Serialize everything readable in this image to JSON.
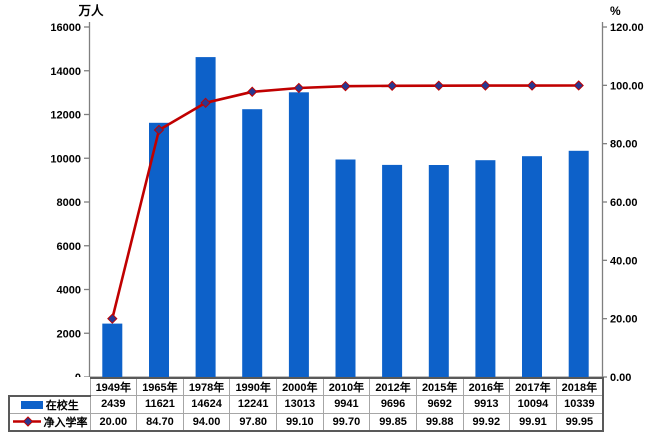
{
  "colors": {
    "bar": "#0d61c9",
    "line": "#c00000",
    "marker_fill": "#283891",
    "marker_stroke": "#c00000",
    "axis_line": "#7f7f7f",
    "table_inner_border": "#a6a6a6",
    "table_outer_border": "#595959",
    "text": "#000000",
    "background": "#ffffff"
  },
  "chart_data": {
    "type": "bar+line",
    "title": "",
    "categories": [
      "1949年",
      "1965年",
      "1978年",
      "1990年",
      "2000年",
      "2010年",
      "2012年",
      "2015年",
      "2016年",
      "2017年",
      "2018年"
    ],
    "series": [
      {
        "name": "在校生",
        "type": "bar",
        "axis": "left",
        "color": "#0d61c9",
        "values": [
          2439,
          11621,
          14624,
          12241,
          13013,
          9941,
          9696,
          9692,
          9913,
          10094,
          10339
        ],
        "display": [
          "2439",
          "11621",
          "14624",
          "12241",
          "13013",
          "9941",
          "9696",
          "9692",
          "9913",
          "10094",
          "10339"
        ]
      },
      {
        "name": "净入学率",
        "type": "line",
        "axis": "right",
        "color": "#c00000",
        "marker": "diamond",
        "marker_color": "#283891",
        "values": [
          20.0,
          84.7,
          94.0,
          97.8,
          99.1,
          99.7,
          99.85,
          99.88,
          99.92,
          99.91,
          99.95
        ],
        "display": [
          "20.00",
          "84.70",
          "94.00",
          "97.80",
          "99.10",
          "99.70",
          "99.85",
          "99.88",
          "99.92",
          "99.91",
          "99.95"
        ]
      }
    ],
    "left_axis": {
      "title": "万人",
      "min": 0,
      "max": 16000,
      "step": 2000,
      "tick_labels": [
        "0",
        "2000",
        "4000",
        "6000",
        "8000",
        "10000",
        "12000",
        "14000",
        "16000"
      ]
    },
    "right_axis": {
      "title": "%",
      "min": 0,
      "max": 120,
      "step": 20,
      "tick_labels": [
        "0.00",
        "20.00",
        "40.00",
        "60.00",
        "80.00",
        "100.00",
        "120.00"
      ]
    },
    "grid": false,
    "legend_position": "data table below chart"
  }
}
